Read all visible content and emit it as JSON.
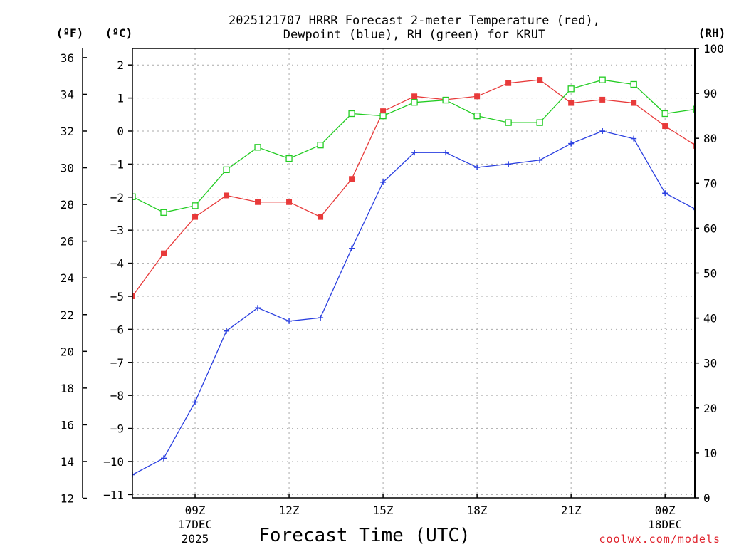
{
  "chart_data": {
    "type": "line",
    "title_line1": "2025121707 HRRR Forecast 2-meter Temperature (red),",
    "title_line2": "Dewpoint (blue), RH (green) for KRUT",
    "xlabel": "Forecast Time (UTC)",
    "credit": "coolwx.com/models",
    "unit_f": "(ºF)",
    "unit_c": "(ºC)",
    "unit_rh": "(RH)",
    "xlim": [
      7,
      24.95
    ],
    "celsius_lim": [
      -11.1,
      2.5
    ],
    "rh_lim": [
      0,
      100
    ],
    "x_hours": [
      7,
      8,
      9,
      10,
      11,
      12,
      13,
      14,
      15,
      16,
      17,
      18,
      19,
      20,
      21,
      22,
      23,
      24,
      25
    ],
    "x_ticks": [
      {
        "hour": 9,
        "label": "09Z",
        "sub1": "17DEC",
        "sub2": "2025"
      },
      {
        "hour": 12,
        "label": "12Z",
        "sub1": "",
        "sub2": ""
      },
      {
        "hour": 15,
        "label": "15Z",
        "sub1": "",
        "sub2": ""
      },
      {
        "hour": 18,
        "label": "18Z",
        "sub1": "",
        "sub2": ""
      },
      {
        "hour": 21,
        "label": "21Z",
        "sub1": "",
        "sub2": ""
      },
      {
        "hour": 24,
        "label": "00Z",
        "sub1": "18DEC",
        "sub2": ""
      }
    ],
    "f_ticks": [
      12,
      14,
      16,
      18,
      20,
      22,
      24,
      26,
      28,
      30,
      32,
      34,
      36
    ],
    "c_ticks": [
      -11,
      -10,
      -9,
      -8,
      -7,
      -6,
      -5,
      -4,
      -3,
      -2,
      -1,
      0,
      1,
      2
    ],
    "rh_ticks": [
      0,
      10,
      20,
      30,
      40,
      50,
      60,
      70,
      80,
      90,
      100
    ],
    "series": [
      {
        "name": "Temperature",
        "unit": "C",
        "color": "#e83a3a",
        "marker": "filled-square",
        "values": [
          -5.0,
          -3.7,
          -2.6,
          -1.95,
          -2.15,
          -2.15,
          -2.6,
          -1.45,
          0.6,
          1.05,
          0.95,
          1.05,
          1.45,
          1.55,
          0.85,
          0.95,
          0.85,
          0.15,
          -0.45
        ]
      },
      {
        "name": "Dewpoint",
        "unit": "C",
        "color": "#2a3fe0",
        "marker": "plus",
        "values": [
          -10.4,
          -9.9,
          -8.2,
          -6.05,
          -5.35,
          -5.75,
          -5.65,
          -3.55,
          -1.55,
          -0.65,
          -0.65,
          -1.1,
          -1.0,
          -0.88,
          -0.38,
          0.0,
          -0.23,
          -1.88,
          -2.38
        ]
      },
      {
        "name": "RH",
        "unit": "%",
        "color": "#22cc22",
        "marker": "open-square",
        "values": [
          67,
          63.5,
          65,
          73,
          78,
          75.5,
          78.5,
          85.5,
          85,
          88,
          88.5,
          85,
          83.5,
          83.5,
          91,
          93,
          92,
          85.5,
          86.5
        ]
      }
    ]
  }
}
